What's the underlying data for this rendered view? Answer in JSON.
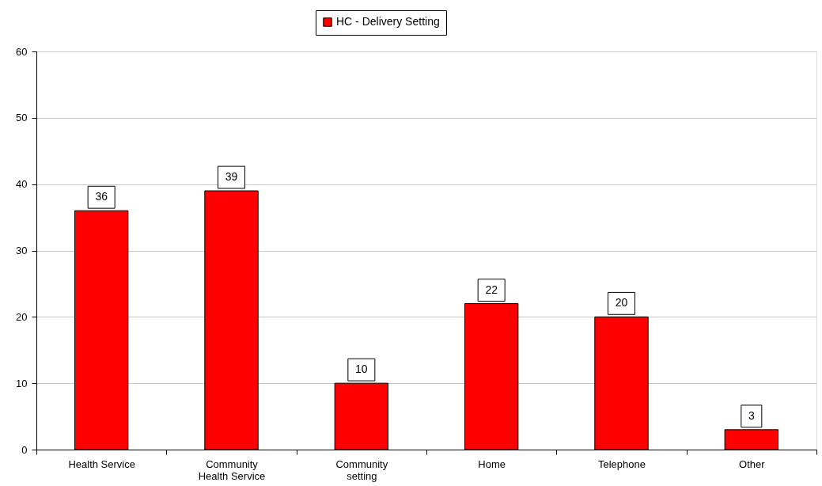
{
  "chart_data": {
    "type": "bar",
    "categories": [
      "Health Service",
      "Community Health Service",
      "Community setting",
      "Home",
      "Telephone",
      "Other"
    ],
    "series": [
      {
        "name": "HC - Delivery Setting",
        "color": "#ff0000",
        "values": [
          36,
          39,
          10,
          22,
          20,
          3
        ]
      }
    ],
    "ylim": [
      0,
      60
    ],
    "yticks": [
      0,
      10,
      20,
      30,
      40,
      50,
      60
    ],
    "grid": "y",
    "legend": "top",
    "data_labels": true
  }
}
